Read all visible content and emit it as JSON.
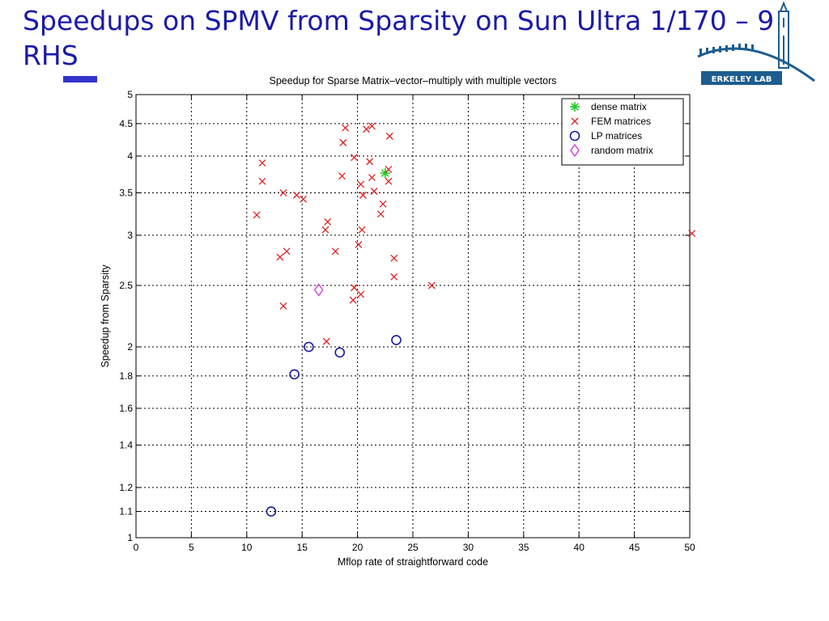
{
  "slide": {
    "title": "Speedups on SPMV from Sparsity on Sun Ultra 1/170 – 9 RHS"
  },
  "logo": {
    "text": "ERKELEY LAB",
    "color": "#1d5d8f"
  },
  "chart_data": {
    "type": "scatter",
    "title": "Speedup for Sparse Matrix–vector–multiply with multiple vectors",
    "xlabel": "Mflop rate of straightforward code",
    "ylabel": "Speedup from Sparsity",
    "xlim": [
      0,
      50
    ],
    "ylim": [
      1,
      5
    ],
    "yscale": "log",
    "grid": true,
    "legend_position": "top-right",
    "xticks": [
      "0",
      "5",
      "10",
      "15",
      "20",
      "25",
      "30",
      "35",
      "40",
      "45",
      "50"
    ],
    "xtick_values": [
      0,
      5,
      10,
      15,
      20,
      25,
      30,
      35,
      40,
      45,
      50
    ],
    "yticks": [
      "1",
      "1.1",
      "1.2",
      "1.4",
      "1.6",
      "1.8",
      "2",
      "2.5",
      "3",
      "3.5",
      "4",
      "4.5",
      "5"
    ],
    "ytick_values": [
      1,
      1.1,
      1.2,
      1.4,
      1.6,
      1.8,
      2,
      2.5,
      3,
      3.5,
      4,
      4.5,
      5
    ],
    "series": [
      {
        "name": "dense matrix",
        "marker": "asterisk",
        "color": "#22cc22",
        "points": [
          [
            22.5,
            3.76
          ]
        ]
      },
      {
        "name": "FEM matrices",
        "marker": "x",
        "color": "#dd2222",
        "points": [
          [
            11.4,
            3.9
          ],
          [
            11.4,
            3.65
          ],
          [
            10.9,
            3.23
          ],
          [
            13.3,
            3.5
          ],
          [
            14.5,
            3.47
          ],
          [
            15.1,
            3.42
          ],
          [
            13.0,
            2.77
          ],
          [
            13.6,
            2.83
          ],
          [
            13.3,
            2.32
          ],
          [
            17.3,
            3.15
          ],
          [
            17.1,
            3.06
          ],
          [
            18.0,
            2.83
          ],
          [
            18.6,
            3.72
          ],
          [
            18.7,
            4.2
          ],
          [
            18.9,
            4.43
          ],
          [
            19.7,
            3.98
          ],
          [
            20.1,
            2.9
          ],
          [
            20.3,
            3.61
          ],
          [
            20.5,
            3.47
          ],
          [
            20.4,
            3.06
          ],
          [
            20.8,
            4.41
          ],
          [
            21.3,
            4.46
          ],
          [
            21.1,
            3.92
          ],
          [
            21.3,
            3.7
          ],
          [
            21.5,
            3.52
          ],
          [
            22.1,
            3.24
          ],
          [
            22.3,
            3.36
          ],
          [
            22.8,
            3.81
          ],
          [
            22.8,
            3.65
          ],
          [
            22.9,
            4.3
          ],
          [
            23.3,
            2.76
          ],
          [
            23.3,
            2.58
          ],
          [
            19.7,
            2.48
          ],
          [
            19.6,
            2.37
          ],
          [
            20.3,
            2.42
          ],
          [
            17.2,
            2.04
          ],
          [
            26.7,
            2.5
          ],
          [
            50.2,
            3.02
          ]
        ]
      },
      {
        "name": "LP matrices",
        "marker": "circle",
        "color": "#1a1aa0",
        "points": [
          [
            15.6,
            2.0
          ],
          [
            14.3,
            1.81
          ],
          [
            18.4,
            1.96
          ],
          [
            23.5,
            2.05
          ],
          [
            12.2,
            1.1
          ]
        ]
      },
      {
        "name": "random matrix",
        "marker": "diamond",
        "color": "#cc44dd",
        "points": [
          [
            16.5,
            2.46
          ]
        ]
      }
    ]
  }
}
